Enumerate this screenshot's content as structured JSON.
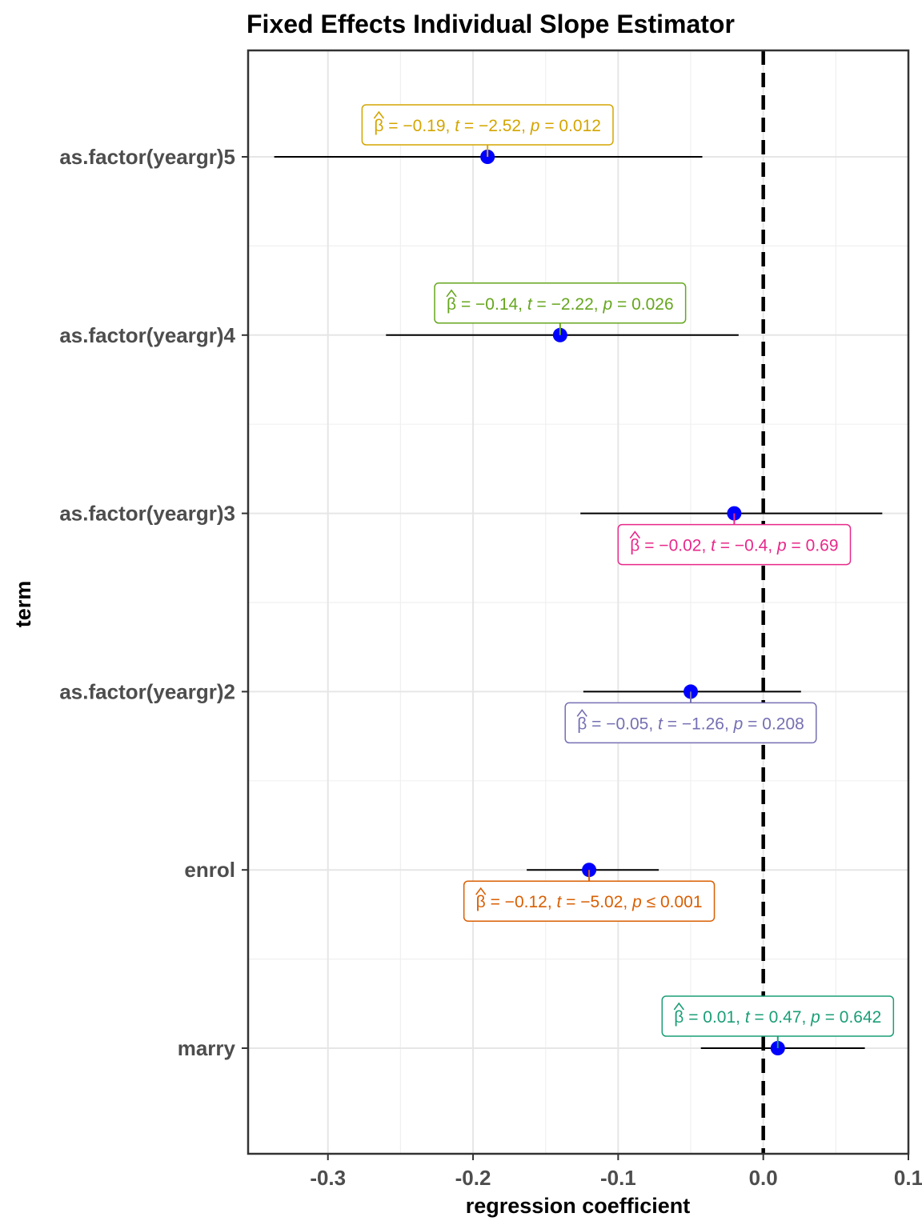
{
  "chart_data": {
    "type": "scatter",
    "title": "Fixed Effects Individual Slope Estimator",
    "xlabel": "regression coefficient",
    "ylabel": "term",
    "xlim": [
      -0.355,
      0.1
    ],
    "x_ticks": [
      -0.3,
      -0.2,
      -0.1,
      0.0,
      0.1
    ],
    "x_tick_labels": [
      "-0.3",
      "-0.2",
      "-0.1",
      "0.0",
      "0.1"
    ],
    "reference_line": 0.0,
    "grid": true,
    "point_color": "#0000FF",
    "errorbar_color": "#000000",
    "terms": [
      {
        "term": "as.factor(yeargr)5",
        "estimate": -0.19,
        "conf_low": -0.337,
        "conf_high": -0.042,
        "color": "#D4A500",
        "label_position": "above",
        "label": {
          "beta": "−0.19",
          "t": "−2.52",
          "p": "0.012",
          "p_rel": "="
        }
      },
      {
        "term": "as.factor(yeargr)4",
        "estimate": -0.14,
        "conf_low": -0.26,
        "conf_high": -0.017,
        "color": "#66A61E",
        "label_position": "above",
        "label": {
          "beta": "−0.14",
          "t": "−2.22",
          "p": "0.026",
          "p_rel": "="
        }
      },
      {
        "term": "as.factor(yeargr)3",
        "estimate": -0.02,
        "conf_low": -0.126,
        "conf_high": 0.082,
        "color": "#E7298A",
        "label_position": "below",
        "label": {
          "beta": "−0.02",
          "t": "−0.4",
          "p": "0.69",
          "p_rel": "="
        }
      },
      {
        "term": "as.factor(yeargr)2",
        "estimate": -0.05,
        "conf_low": -0.124,
        "conf_high": 0.026,
        "color": "#7570B3",
        "label_position": "below",
        "label": {
          "beta": "−0.05",
          "t": "−1.26",
          "p": "0.208",
          "p_rel": "="
        }
      },
      {
        "term": "enrol",
        "estimate": -0.12,
        "conf_low": -0.163,
        "conf_high": -0.072,
        "color": "#D95F02",
        "label_position": "below",
        "label": {
          "beta": "−0.12",
          "t": "−5.02",
          "p": "0.001",
          "p_rel": "≤"
        }
      },
      {
        "term": "marry",
        "estimate": 0.01,
        "conf_low": -0.043,
        "conf_high": 0.07,
        "color": "#1B9E77",
        "label_position": "above",
        "label": {
          "beta": "0.01",
          "t": "0.47",
          "p": "0.642",
          "p_rel": "="
        }
      }
    ]
  }
}
